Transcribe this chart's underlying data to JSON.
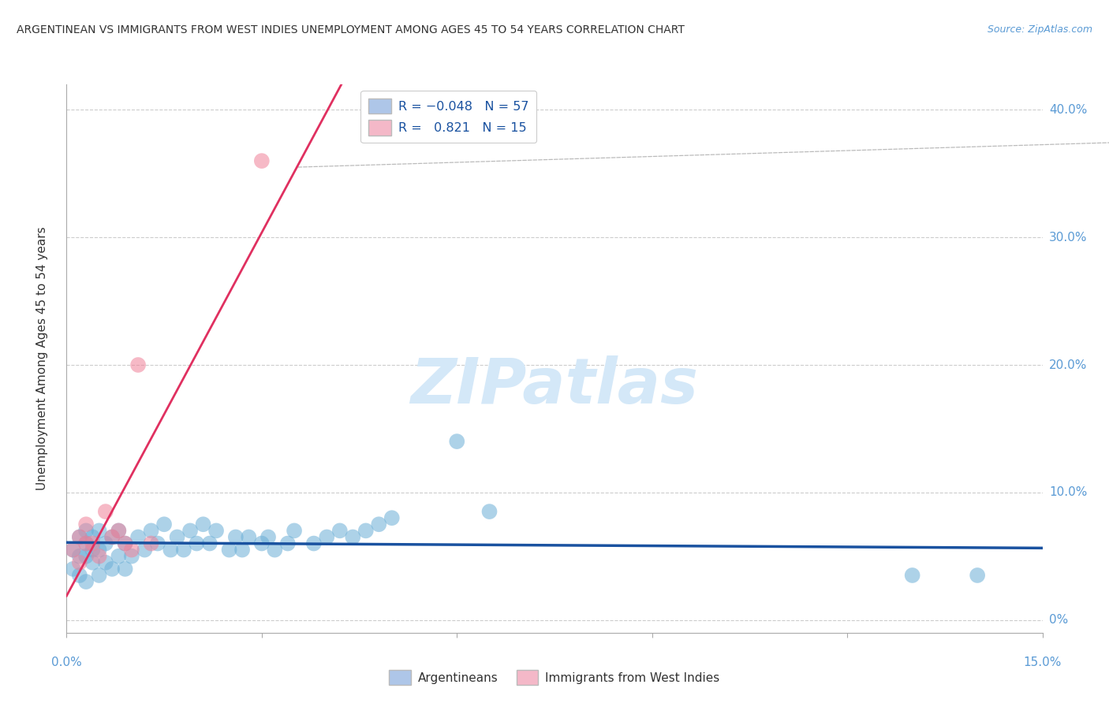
{
  "title": "ARGENTINEAN VS IMMIGRANTS FROM WEST INDIES UNEMPLOYMENT AMONG AGES 45 TO 54 YEARS CORRELATION CHART",
  "source": "Source: ZipAtlas.com",
  "ylabel": "Unemployment Among Ages 45 to 54 years",
  "right_ytick_labels": [
    "0%",
    "10.0%",
    "20.0%",
    "30.0%",
    "40.0%"
  ],
  "right_ytick_vals": [
    0.0,
    0.1,
    0.2,
    0.3,
    0.4
  ],
  "xmin": 0.0,
  "xmax": 0.15,
  "ymin": -0.01,
  "ymax": 0.42,
  "legend1_color": "#aec6e8",
  "legend2_color": "#f4b8c8",
  "blue_dot_color": "#6aaed6",
  "pink_dot_color": "#f08098",
  "trendline_blue_color": "#1a52a0",
  "trendline_pink_color": "#e03060",
  "watermark_color": "#d4e8f8",
  "blue_x": [
    0.001,
    0.001,
    0.002,
    0.002,
    0.002,
    0.003,
    0.003,
    0.003,
    0.003,
    0.004,
    0.004,
    0.004,
    0.005,
    0.005,
    0.005,
    0.006,
    0.006,
    0.007,
    0.007,
    0.008,
    0.008,
    0.009,
    0.009,
    0.01,
    0.011,
    0.012,
    0.013,
    0.014,
    0.015,
    0.016,
    0.017,
    0.018,
    0.019,
    0.02,
    0.021,
    0.022,
    0.023,
    0.025,
    0.026,
    0.027,
    0.028,
    0.03,
    0.031,
    0.032,
    0.034,
    0.035,
    0.038,
    0.04,
    0.042,
    0.044,
    0.046,
    0.048,
    0.05,
    0.06,
    0.065,
    0.13,
    0.14
  ],
  "blue_y": [
    0.04,
    0.055,
    0.035,
    0.05,
    0.065,
    0.03,
    0.05,
    0.06,
    0.07,
    0.045,
    0.055,
    0.065,
    0.035,
    0.055,
    0.07,
    0.045,
    0.06,
    0.04,
    0.065,
    0.05,
    0.07,
    0.04,
    0.06,
    0.05,
    0.065,
    0.055,
    0.07,
    0.06,
    0.075,
    0.055,
    0.065,
    0.055,
    0.07,
    0.06,
    0.075,
    0.06,
    0.07,
    0.055,
    0.065,
    0.055,
    0.065,
    0.06,
    0.065,
    0.055,
    0.06,
    0.07,
    0.06,
    0.065,
    0.07,
    0.065,
    0.07,
    0.075,
    0.08,
    0.14,
    0.085,
    0.035,
    0.035
  ],
  "pink_x": [
    0.001,
    0.002,
    0.002,
    0.003,
    0.003,
    0.004,
    0.005,
    0.006,
    0.007,
    0.008,
    0.009,
    0.01,
    0.011,
    0.013,
    0.03
  ],
  "pink_y": [
    0.055,
    0.045,
    0.065,
    0.06,
    0.075,
    0.06,
    0.05,
    0.085,
    0.065,
    0.07,
    0.06,
    0.055,
    0.2,
    0.06,
    0.36
  ]
}
